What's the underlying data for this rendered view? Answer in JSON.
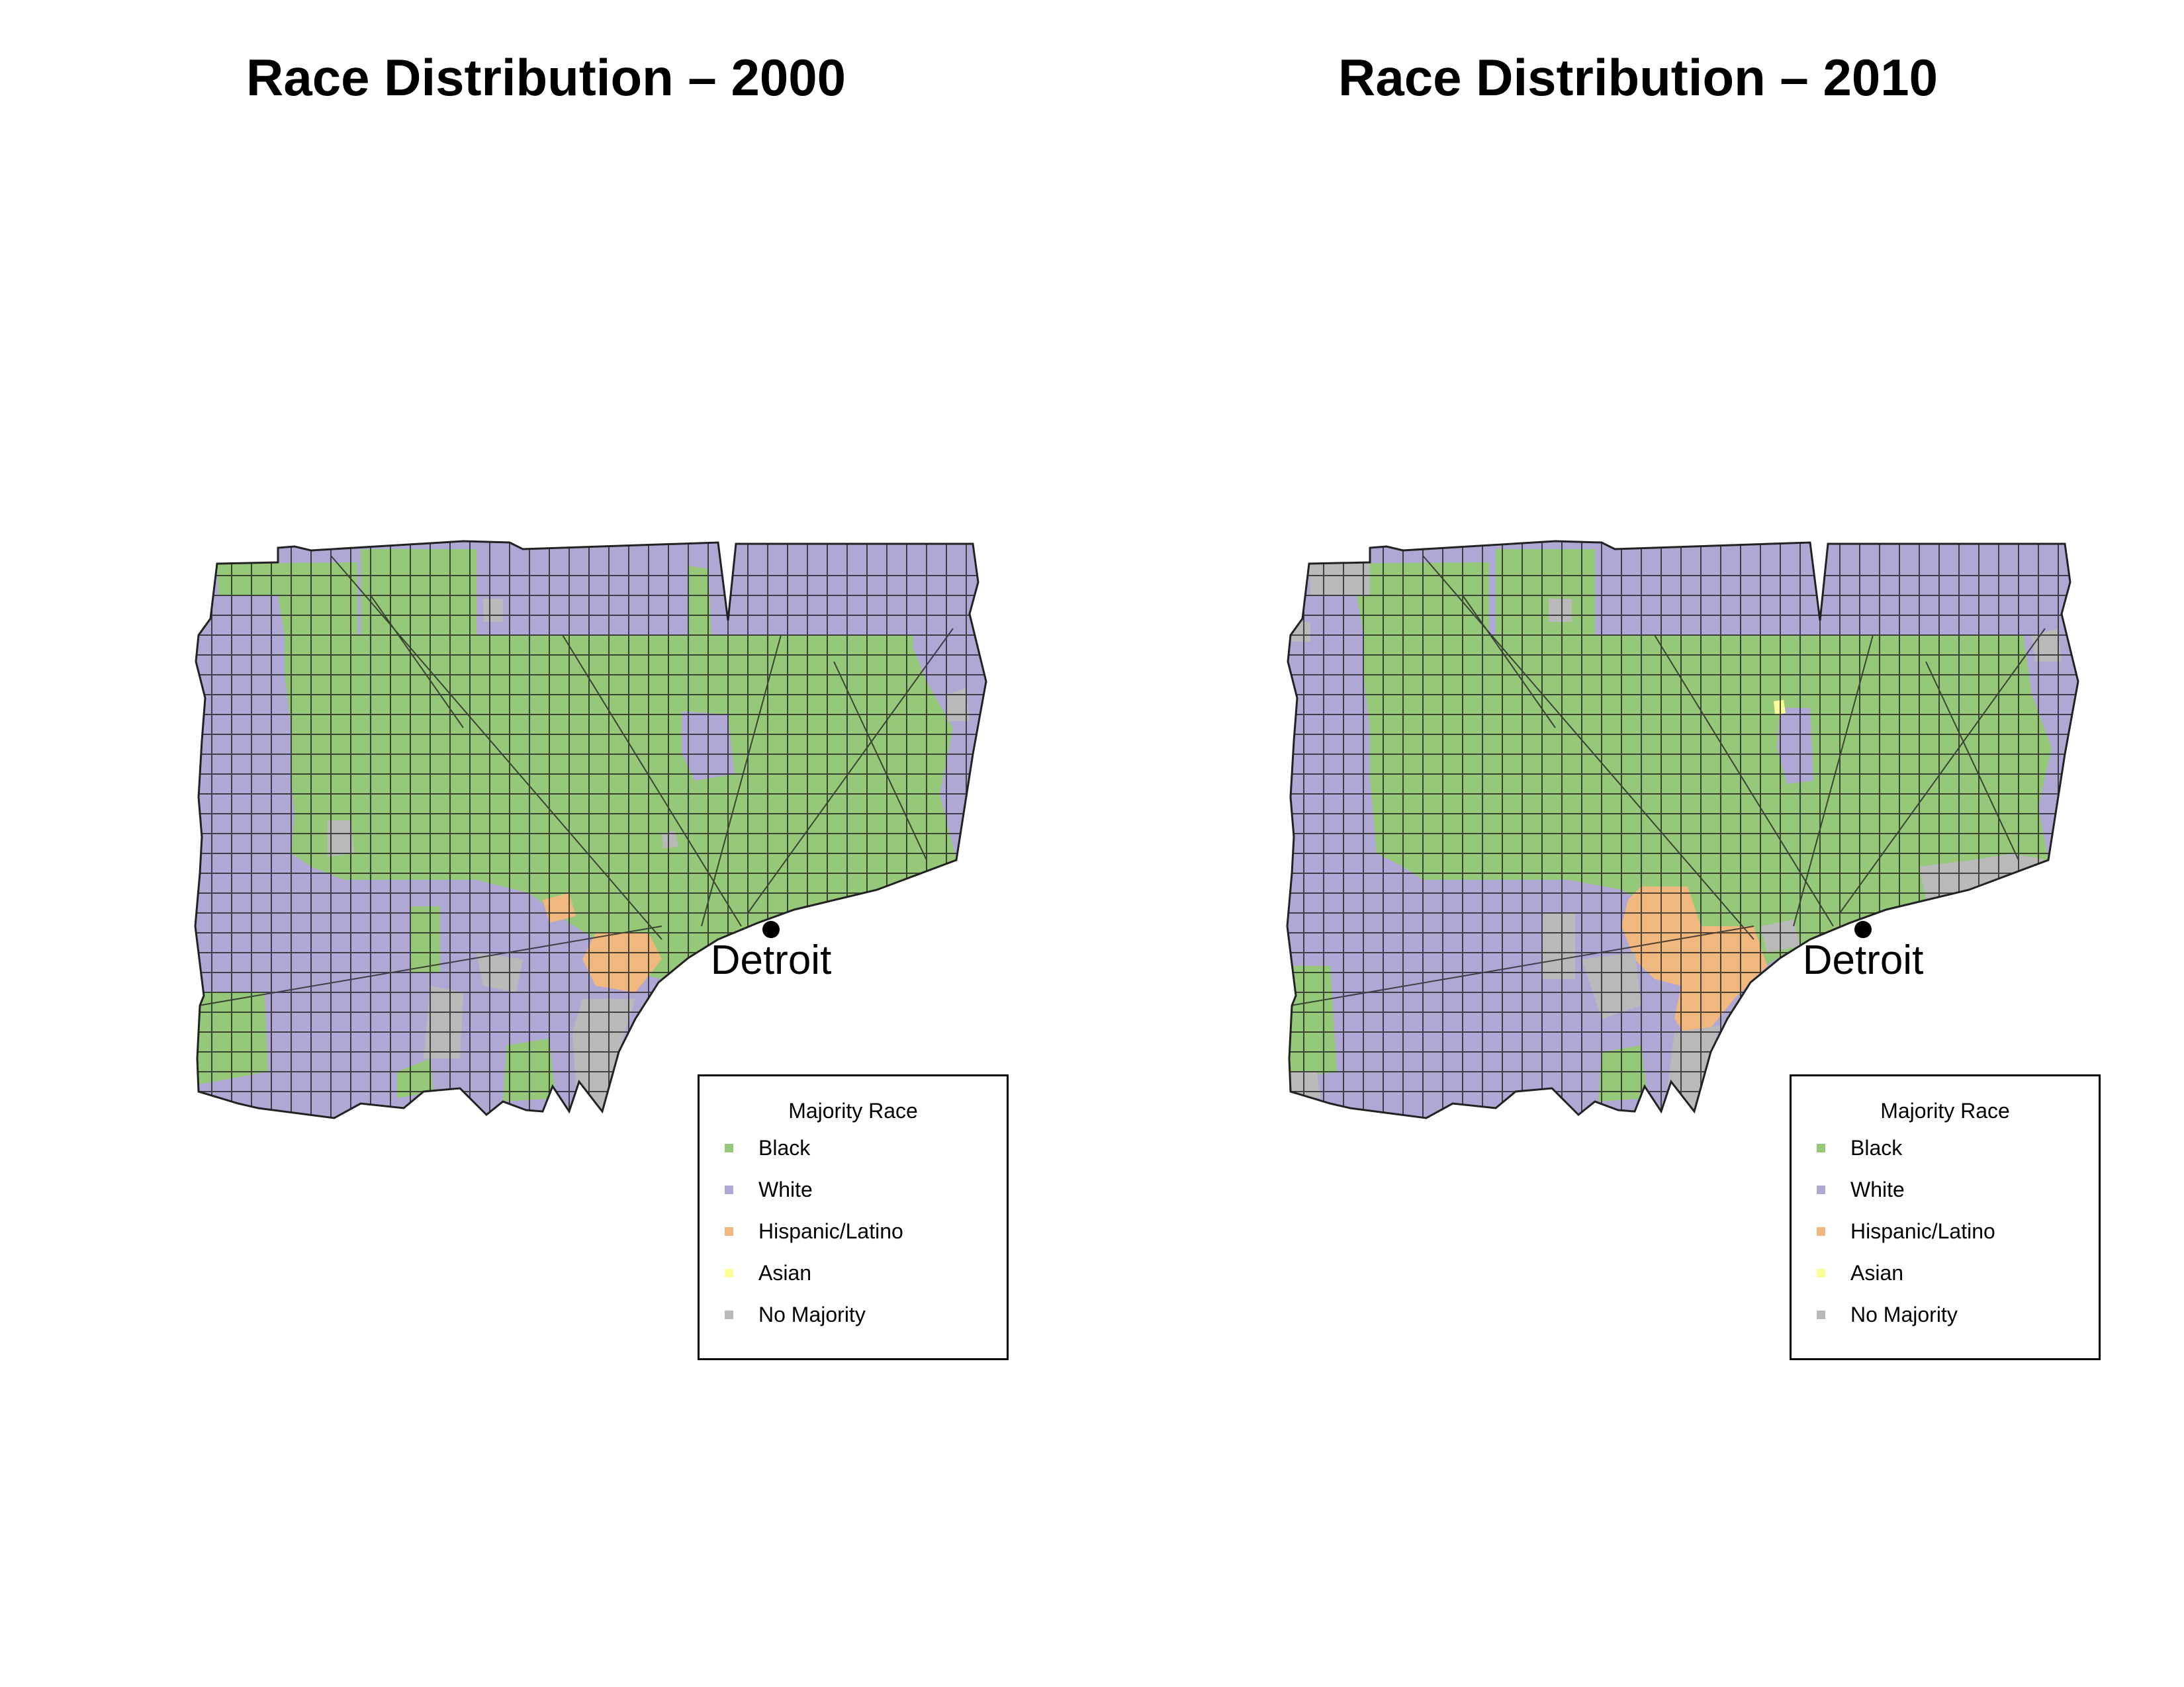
{
  "maps": [
    {
      "title": "Race Distribution – 2000",
      "city_label": "Detroit",
      "legend": {
        "title": "Majority Race",
        "items": [
          {
            "label": "Black",
            "color": "#96c87a"
          },
          {
            "label": "White",
            "color": "#b0a8d4"
          },
          {
            "label": "Hispanic/Latino",
            "color": "#f0b87e"
          },
          {
            "label": "Asian",
            "color": "#fdfd9a"
          },
          {
            "label": "No Majority",
            "color": "#b9b9b9"
          }
        ]
      }
    },
    {
      "title": "Race Distribution – 2010",
      "city_label": "Detroit",
      "legend": {
        "title": "Majority Race",
        "items": [
          {
            "label": "Black",
            "color": "#96c87a"
          },
          {
            "label": "White",
            "color": "#b0a8d4"
          },
          {
            "label": "Hispanic/Latino",
            "color": "#f0b87e"
          },
          {
            "label": "Asian",
            "color": "#fdfd9a"
          },
          {
            "label": "No Majority",
            "color": "#b9b9b9"
          }
        ]
      }
    }
  ]
}
